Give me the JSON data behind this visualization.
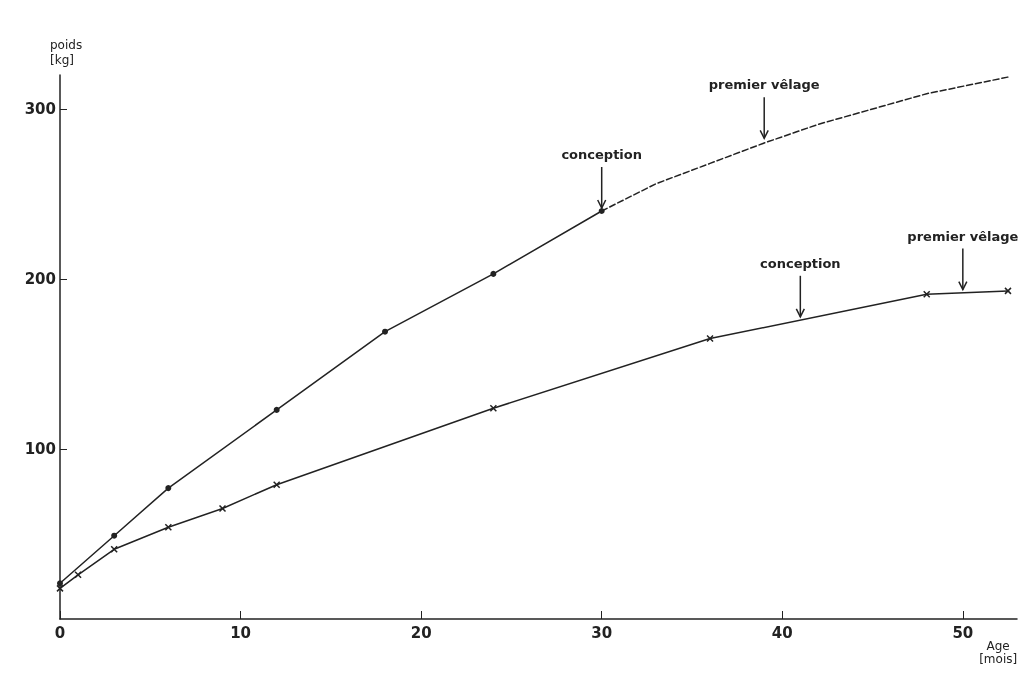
{
  "chart_data": {
    "type": "line",
    "xlabel": "Age\n[mois]",
    "ylabel": "poids\n[kg]",
    "xlim": [
      0,
      53
    ],
    "ylim": [
      0,
      320
    ],
    "xticks": [
      0,
      10,
      20,
      30,
      40,
      50
    ],
    "yticks": [
      100,
      200,
      300
    ],
    "grid": false,
    "series": [
      {
        "color": "#222222",
        "marker": "circle",
        "line_style": "solid",
        "x": [
          0,
          3,
          6,
          12,
          18,
          24,
          30
        ],
        "values": [
          21,
          49,
          77,
          123,
          169,
          203,
          240
        ]
      },
      {
        "color": "#222222",
        "marker": "none",
        "line_style": "dashed",
        "x": [
          30,
          33,
          36,
          39,
          42,
          45,
          48,
          52.6
        ],
        "values": [
          240,
          256,
          268,
          280,
          291,
          300,
          309,
          319
        ]
      },
      {
        "color": "#222222",
        "marker": "cross",
        "line_style": "solid",
        "x": [
          0,
          1,
          3,
          6,
          9,
          12,
          24,
          36,
          48,
          52.5
        ],
        "values": [
          18,
          26,
          41,
          54,
          65,
          79,
          124,
          165,
          191,
          193
        ]
      }
    ],
    "annotations": [
      {
        "text": "conception",
        "x": 30,
        "y": 240
      },
      {
        "text": "premier vêlage",
        "x": 39,
        "y": 281
      },
      {
        "text": "conception",
        "x": 41,
        "y": 176
      },
      {
        "text": "premier vêlage",
        "x": 50,
        "y": 192
      }
    ]
  }
}
